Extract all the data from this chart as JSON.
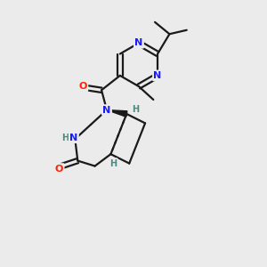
{
  "bg_color": "#ebebeb",
  "bond_color": "#1a1a1a",
  "N_color": "#1a1aff",
  "O_color": "#ff2200",
  "H_color": "#4a8a80",
  "figsize": [
    3.0,
    3.0
  ],
  "dpi": 100,
  "xlim": [
    0,
    10
  ],
  "ylim": [
    0,
    10
  ]
}
